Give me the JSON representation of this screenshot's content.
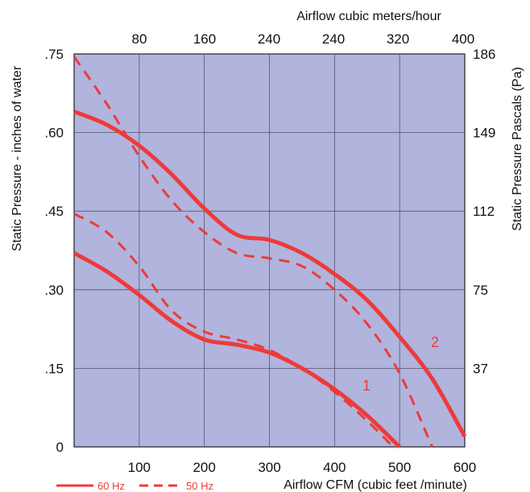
{
  "chart_data": {
    "type": "line",
    "title": "",
    "top_axis_title": "Airflow cubic meters/hour",
    "top_tick_labels": [
      "80",
      "160",
      "240",
      "240",
      "320",
      "400"
    ],
    "xlabel": "Airflow  CFM (cubic feet /minute)",
    "ylabel": "Static Pressure - inches of water",
    "ylabel_right": "Static Pressure Pascals (Pa)",
    "x_tick_labels": [
      "100",
      "200",
      "300",
      "400",
      "500",
      "600"
    ],
    "y_tick_labels": [
      ".75",
      ".60",
      ".45",
      ".30",
      ".15",
      "0"
    ],
    "y_right_tick_labels": [
      "186",
      "149",
      "112",
      "75",
      "37"
    ],
    "xlim": [
      0,
      600
    ],
    "ylim": [
      0,
      0.75
    ],
    "grid": true,
    "background": "#b1b4dd",
    "curve_color": "#ee3a3a",
    "curve_labels": [
      "1",
      "2"
    ],
    "legend": [
      {
        "name": "60 Hz",
        "style": "solid"
      },
      {
        "name": "50 Hz",
        "style": "dashed"
      }
    ],
    "series": [
      {
        "curve": "2",
        "hz": "60",
        "x": [
          0,
          50,
          100,
          150,
          200,
          250,
          300,
          350,
          400,
          450,
          500,
          550,
          600
        ],
        "y": [
          0.64,
          0.615,
          0.575,
          0.52,
          0.455,
          0.405,
          0.395,
          0.37,
          0.33,
          0.28,
          0.21,
          0.13,
          0.02
        ]
      },
      {
        "curve": "2",
        "hz": "50",
        "x": [
          0,
          50,
          100,
          150,
          200,
          250,
          300,
          350,
          400,
          450,
          500,
          550
        ],
        "y": [
          0.745,
          0.655,
          0.555,
          0.47,
          0.41,
          0.37,
          0.36,
          0.345,
          0.3,
          0.235,
          0.14,
          0.0
        ]
      },
      {
        "curve": "1",
        "hz": "60",
        "x": [
          0,
          50,
          100,
          150,
          200,
          250,
          300,
          350,
          400,
          450,
          500
        ],
        "y": [
          0.37,
          0.335,
          0.29,
          0.24,
          0.205,
          0.195,
          0.18,
          0.15,
          0.11,
          0.06,
          0.0
        ]
      },
      {
        "curve": "1",
        "hz": "50",
        "x": [
          0,
          50,
          100,
          150,
          200,
          250,
          300,
          350,
          400,
          450,
          490
        ],
        "y": [
          0.445,
          0.41,
          0.345,
          0.26,
          0.22,
          0.205,
          0.185,
          0.15,
          0.105,
          0.05,
          0.0
        ]
      }
    ]
  }
}
